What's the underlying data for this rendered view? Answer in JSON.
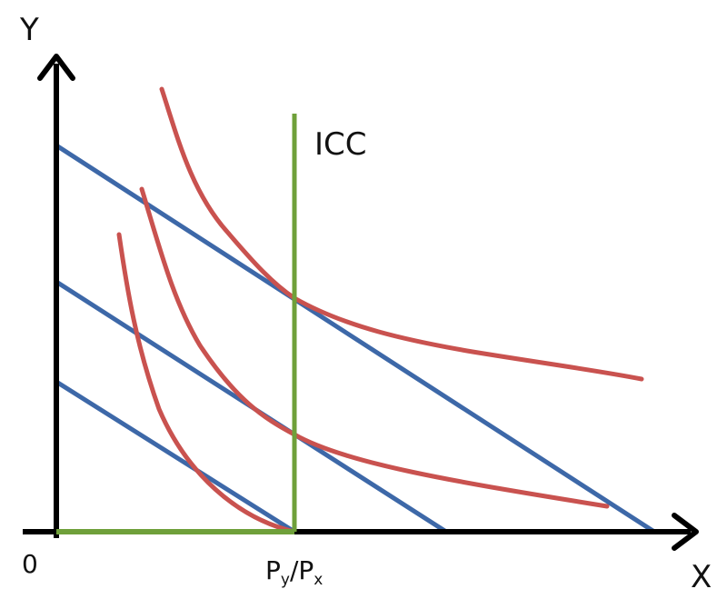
{
  "labels": {
    "y_axis": "Y",
    "x_axis": "X",
    "origin": "0",
    "icc": "ICC",
    "x_tick": {
      "main1": "P",
      "sub1": "y",
      "slash": "/",
      "main2": "P",
      "sub2": "x"
    }
  },
  "colors": {
    "axes": "#000000",
    "budget_lines": "#3d68a8",
    "indifference_curves": "#c9524f",
    "icc": "#6fa03a"
  },
  "series": {
    "budget_lines": 3,
    "indifference_curves": 3
  }
}
